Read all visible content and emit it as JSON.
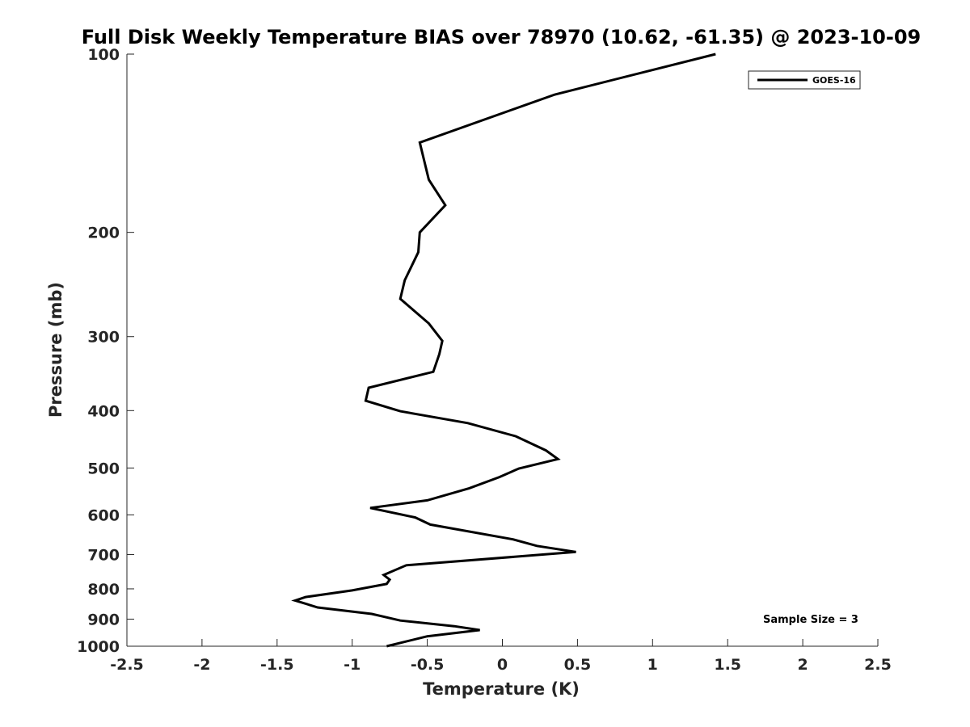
{
  "chart_data": {
    "type": "line",
    "title": "Full Disk Weekly Temperature BIAS over 78970 (10.62, -61.35) @ 2023-10-09",
    "xlabel": "Temperature (K)",
    "ylabel": "Pressure (mb)",
    "xlim": [
      -2.5,
      2.5
    ],
    "ylim": [
      100,
      1000
    ],
    "y_scale": "log",
    "y_reversed": true,
    "x_ticks": [
      -2.5,
      -2,
      -1.5,
      -1,
      -0.5,
      0,
      0.5,
      1,
      1.5,
      2,
      2.5
    ],
    "x_tick_labels": [
      "-2.5",
      "-2",
      "-1.5",
      "-1",
      "-0.5",
      "0",
      "0.5",
      "1",
      "1.5",
      "2",
      "2.5"
    ],
    "y_ticks": [
      100,
      200,
      300,
      400,
      500,
      600,
      700,
      800,
      900,
      1000
    ],
    "y_tick_labels": [
      "100",
      "200",
      "300",
      "400",
      "500",
      "600",
      "700",
      "800",
      "900",
      "1000"
    ],
    "grid": false,
    "legend_position": "top-right",
    "series": [
      {
        "name": "GOES-16",
        "color": "#000000",
        "x": [
          1.42,
          0.35,
          -0.55,
          -0.49,
          -0.38,
          -0.55,
          -0.56,
          -0.65,
          -0.68,
          -0.49,
          -0.4,
          -0.42,
          -0.46,
          -0.89,
          -0.91,
          -0.68,
          -0.23,
          0.09,
          0.29,
          0.37,
          0.11,
          -0.02,
          -0.22,
          -0.5,
          -0.88,
          -0.58,
          -0.48,
          0.07,
          0.23,
          0.49,
          -0.64,
          -0.79,
          -0.75,
          -0.77,
          -1.0,
          -1.31,
          -1.38,
          -1.23,
          -0.87,
          -0.68,
          -0.32,
          -0.15,
          -0.5,
          -0.77
        ],
        "y": [
          100,
          117,
          141,
          163,
          180,
          200,
          216,
          241,
          259,
          285,
          305,
          321,
          344,
          366,
          385,
          401,
          420,
          442,
          467,
          483,
          501,
          518,
          541,
          567,
          584,
          606,
          623,
          660,
          677,
          693,
          730,
          758,
          772,
          785,
          805,
          826,
          837,
          860,
          882,
          905,
          925,
          939,
          962,
          1000
        ]
      }
    ],
    "annotations": [
      {
        "text": "Sample Size = 3",
        "x": 2.0,
        "y": 900
      }
    ]
  }
}
